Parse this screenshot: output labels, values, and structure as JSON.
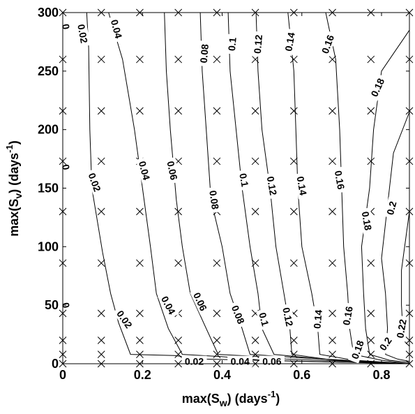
{
  "chart_data": {
    "type": "contour",
    "title": "",
    "xlabel": {
      "prefix": "max(S",
      "sub": "w",
      "mid": ") (days",
      "sup": "-1",
      "suffix": ")"
    },
    "ylabel": {
      "prefix": "max(S",
      "sub": "v",
      "mid": ") (days",
      "sup": "-1",
      "suffix": ")"
    },
    "xlim": [
      0,
      0.87
    ],
    "ylim": [
      0,
      300
    ],
    "xticks": [
      {
        "v": 0,
        "label": "0"
      },
      {
        "v": 0.2,
        "label": "0.2"
      },
      {
        "v": 0.4,
        "label": "0.4"
      },
      {
        "v": 0.6,
        "label": "0.6"
      },
      {
        "v": 0.8,
        "label": "0.8"
      }
    ],
    "yticks": [
      {
        "v": 0,
        "label": "0"
      },
      {
        "v": 50,
        "label": "50"
      },
      {
        "v": 100,
        "label": "100"
      },
      {
        "v": 150,
        "label": "150"
      },
      {
        "v": 200,
        "label": "200"
      },
      {
        "v": 250,
        "label": "250"
      },
      {
        "v": 300,
        "label": "300"
      }
    ],
    "sample_grid": {
      "x": [
        0,
        0.0967,
        0.1933,
        0.29,
        0.3867,
        0.4833,
        0.58,
        0.6767,
        0.7733,
        0.87
      ],
      "y": [
        0,
        8,
        20,
        43,
        86,
        130,
        173,
        216,
        260,
        300
      ]
    },
    "contours": [
      {
        "level": 0.02,
        "points": [
          [
            0.06,
            300
          ],
          [
            0.065,
            270
          ],
          [
            0.068,
            200
          ],
          [
            0.073,
            150
          ],
          [
            0.1,
            95
          ],
          [
            0.12,
            60
          ],
          [
            0.14,
            35
          ],
          [
            0.17,
            8
          ],
          [
            0.28,
            7
          ],
          [
            0.35,
            4
          ],
          [
            0.87,
            0
          ]
        ],
        "labels": [
          {
            "text": "0.02",
            "x": 0.05,
            "y": 282,
            "angle": 80
          },
          {
            "text": "0.02",
            "x": 0.08,
            "y": 155,
            "angle": 70
          },
          {
            "text": "0.02",
            "x": 0.155,
            "y": 38,
            "angle": 55
          },
          {
            "text": "0.02",
            "x": 0.33,
            "y": 2,
            "angle": 0
          }
        ]
      },
      {
        "level": 0.04,
        "points": [
          [
            0.115,
            300
          ],
          [
            0.15,
            260
          ],
          [
            0.18,
            200
          ],
          [
            0.2,
            150
          ],
          [
            0.22,
            100
          ],
          [
            0.235,
            60
          ],
          [
            0.265,
            30
          ],
          [
            0.3,
            8
          ],
          [
            0.4,
            6
          ],
          [
            0.5,
            3
          ],
          [
            0.87,
            0
          ]
        ],
        "labels": [
          {
            "text": "0.04",
            "x": 0.135,
            "y": 286,
            "angle": 75
          },
          {
            "text": "0.04",
            "x": 0.205,
            "y": 165,
            "angle": 75
          },
          {
            "text": "0.04",
            "x": 0.265,
            "y": 50,
            "angle": 62
          },
          {
            "text": "0.04",
            "x": 0.445,
            "y": 2,
            "angle": 0
          }
        ]
      },
      {
        "level": 0.06,
        "points": [
          [
            0.255,
            300
          ],
          [
            0.26,
            250
          ],
          [
            0.27,
            200
          ],
          [
            0.285,
            140
          ],
          [
            0.3,
            100
          ],
          [
            0.32,
            60
          ],
          [
            0.36,
            30
          ],
          [
            0.39,
            8
          ],
          [
            0.5,
            6
          ],
          [
            0.56,
            4
          ],
          [
            0.87,
            0
          ]
        ],
        "labels": [
          {
            "text": "0.06",
            "x": 0.275,
            "y": 165,
            "angle": 78
          },
          {
            "text": "0.06",
            "x": 0.345,
            "y": 53,
            "angle": 65
          },
          {
            "text": "0.06",
            "x": 0.525,
            "y": 2,
            "angle": 0
          }
        ]
      },
      {
        "level": 0.08,
        "points": [
          [
            0.345,
            300
          ],
          [
            0.35,
            250
          ],
          [
            0.36,
            200
          ],
          [
            0.372,
            140
          ],
          [
            0.4,
            100
          ],
          [
            0.42,
            60
          ],
          [
            0.45,
            30
          ],
          [
            0.47,
            8
          ],
          [
            0.6,
            5
          ],
          [
            0.87,
            0
          ]
        ],
        "labels": [
          {
            "text": "0.08",
            "x": 0.355,
            "y": 265,
            "angle": -85
          },
          {
            "text": "0.08",
            "x": 0.38,
            "y": 140,
            "angle": 82
          },
          {
            "text": "0.08",
            "x": 0.44,
            "y": 42,
            "angle": 68
          }
        ]
      },
      {
        "level": 0.1,
        "points": [
          [
            0.415,
            300
          ],
          [
            0.42,
            250
          ],
          [
            0.435,
            200
          ],
          [
            0.45,
            150
          ],
          [
            0.47,
            100
          ],
          [
            0.49,
            60
          ],
          [
            0.5,
            30
          ],
          [
            0.53,
            8
          ],
          [
            0.65,
            4
          ],
          [
            0.87,
            0
          ]
        ],
        "labels": [
          {
            "text": "0.1",
            "x": 0.425,
            "y": 273,
            "angle": -85
          },
          {
            "text": "0.1",
            "x": 0.455,
            "y": 157,
            "angle": 80
          },
          {
            "text": "0.1",
            "x": 0.505,
            "y": 38,
            "angle": 75
          }
        ]
      },
      {
        "level": 0.12,
        "points": [
          [
            0.485,
            300
          ],
          [
            0.49,
            250
          ],
          [
            0.5,
            200
          ],
          [
            0.52,
            150
          ],
          [
            0.535,
            100
          ],
          [
            0.555,
            60
          ],
          [
            0.57,
            30
          ],
          [
            0.575,
            8
          ],
          [
            0.68,
            3
          ],
          [
            0.87,
            0
          ]
        ],
        "labels": [
          {
            "text": "0.12",
            "x": 0.49,
            "y": 273,
            "angle": -85
          },
          {
            "text": "0.12",
            "x": 0.525,
            "y": 152,
            "angle": 80
          },
          {
            "text": "0.12",
            "x": 0.565,
            "y": 40,
            "angle": 78
          }
        ]
      },
      {
        "level": 0.14,
        "points": [
          [
            0.565,
            300
          ],
          [
            0.58,
            250
          ],
          [
            0.585,
            200
          ],
          [
            0.59,
            150
          ],
          [
            0.6,
            100
          ],
          [
            0.625,
            60
          ],
          [
            0.64,
            30
          ],
          [
            0.645,
            8
          ],
          [
            0.73,
            3
          ],
          [
            0.87,
            0
          ]
        ],
        "labels": [
          {
            "text": "0.14",
            "x": 0.57,
            "y": 275,
            "angle": -80
          },
          {
            "text": "0.14",
            "x": 0.6,
            "y": 152,
            "angle": 80
          },
          {
            "text": "0.14",
            "x": 0.64,
            "y": 38,
            "angle": -85
          }
        ]
      },
      {
        "level": 0.16,
        "points": [
          [
            0.66,
            300
          ],
          [
            0.685,
            260
          ],
          [
            0.695,
            200
          ],
          [
            0.7,
            150
          ],
          [
            0.705,
            100
          ],
          [
            0.715,
            60
          ],
          [
            0.72,
            30
          ],
          [
            0.73,
            8
          ],
          [
            0.8,
            3
          ],
          [
            0.87,
            0
          ]
        ],
        "labels": [
          {
            "text": "0.16",
            "x": 0.665,
            "y": 273,
            "angle": -70
          },
          {
            "text": "0.16",
            "x": 0.695,
            "y": 157,
            "angle": 80
          },
          {
            "text": "0.16",
            "x": 0.715,
            "y": 41,
            "angle": -80
          }
        ]
      },
      {
        "level": 0.18,
        "points": [
          [
            0.87,
            285
          ],
          [
            0.8,
            250
          ],
          [
            0.78,
            200
          ],
          [
            0.77,
            150
          ],
          [
            0.75,
            100
          ],
          [
            0.755,
            60
          ],
          [
            0.76,
            30
          ],
          [
            0.77,
            8
          ],
          [
            0.82,
            3
          ],
          [
            0.87,
            1
          ]
        ],
        "labels": [
          {
            "text": "0.18",
            "x": 0.79,
            "y": 236,
            "angle": -65
          },
          {
            "text": "0.18",
            "x": 0.763,
            "y": 122,
            "angle": 80
          },
          {
            "text": "0.18",
            "x": 0.74,
            "y": 12,
            "angle": -70
          }
        ]
      },
      {
        "level": 0.2,
        "points": [
          [
            0.87,
            215
          ],
          [
            0.83,
            180
          ],
          [
            0.82,
            150
          ],
          [
            0.81,
            120
          ],
          [
            0.8,
            90
          ],
          [
            0.81,
            60
          ],
          [
            0.815,
            30
          ],
          [
            0.81,
            8
          ],
          [
            0.84,
            4
          ],
          [
            0.87,
            2
          ]
        ],
        "labels": [
          {
            "text": "0.2",
            "x": 0.825,
            "y": 133,
            "angle": -75
          },
          {
            "text": "0.2",
            "x": 0.81,
            "y": 17,
            "angle": -55
          }
        ]
      },
      {
        "level": 0.22,
        "points": [
          [
            0.87,
            130
          ],
          [
            0.85,
            80
          ],
          [
            0.85,
            50
          ],
          [
            0.855,
            20
          ],
          [
            0.87,
            15
          ]
        ],
        "labels": [
          {
            "text": "0.22",
            "x": 0.85,
            "y": 30,
            "angle": -80
          }
        ]
      }
    ],
    "edge_fragments": [
      {
        "text": "0",
        "x": 0.008,
        "y": 288
      },
      {
        "text": "0",
        "x": 0.008,
        "y": 168
      },
      {
        "text": "0",
        "x": 0.008,
        "y": 50
      }
    ],
    "grid": false,
    "legend": "none"
  }
}
